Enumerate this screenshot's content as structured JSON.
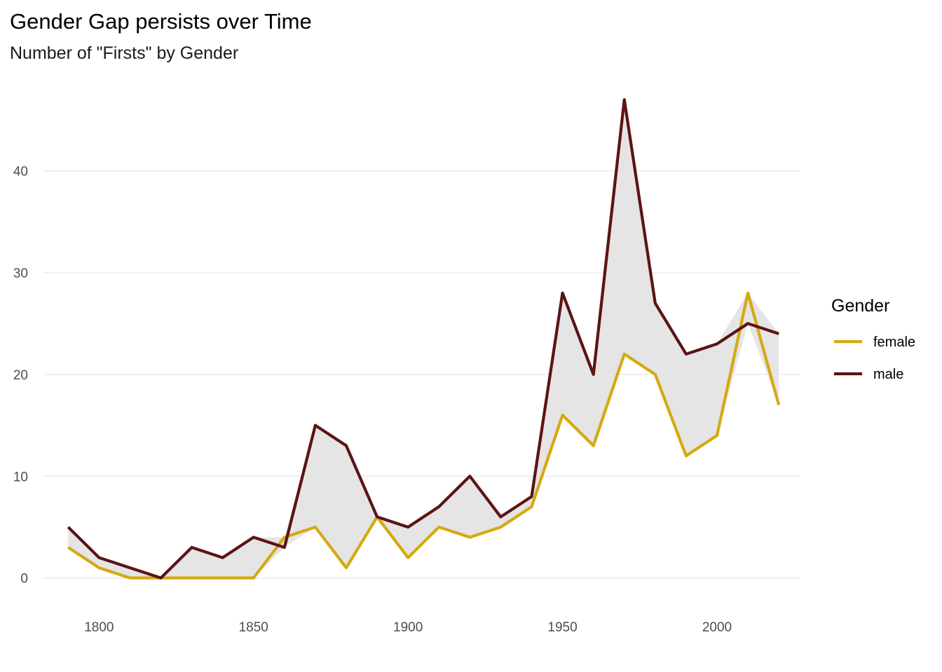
{
  "chart_data": {
    "type": "line",
    "title": "Gender Gap persists over Time",
    "subtitle": "Number of \"Firsts\" by Gender",
    "xlabel": "",
    "ylabel": "",
    "x": [
      1790,
      1800,
      1810,
      1820,
      1830,
      1840,
      1850,
      1860,
      1870,
      1880,
      1890,
      1900,
      1910,
      1920,
      1930,
      1940,
      1950,
      1960,
      1970,
      1980,
      1990,
      2000,
      2010,
      2020
    ],
    "series": [
      {
        "name": "female",
        "color": "#d4aa10",
        "values": [
          3,
          1,
          0,
          0,
          0,
          0,
          0,
          4,
          5,
          1,
          6,
          2,
          5,
          4,
          5,
          7,
          16,
          13,
          22,
          20,
          12,
          14,
          28,
          17
        ]
      },
      {
        "name": "male",
        "color": "#5c1414",
        "values": [
          5,
          2,
          1,
          0,
          3,
          2,
          4,
          3,
          15,
          13,
          6,
          5,
          7,
          10,
          6,
          8,
          28,
          20,
          47,
          27,
          22,
          23,
          25,
          24
        ]
      }
    ],
    "ribbon": {
      "fill": "#e5e5e5"
    },
    "xlim": [
      1782,
      2027
    ],
    "ylim": [
      -2.5,
      49.5
    ],
    "x_ticks": [
      1800,
      1850,
      1900,
      1950,
      2000
    ],
    "y_ticks": [
      0,
      10,
      20,
      30,
      40
    ],
    "grid": "horizontal",
    "legend": {
      "title": "Gender",
      "position": "right"
    }
  }
}
